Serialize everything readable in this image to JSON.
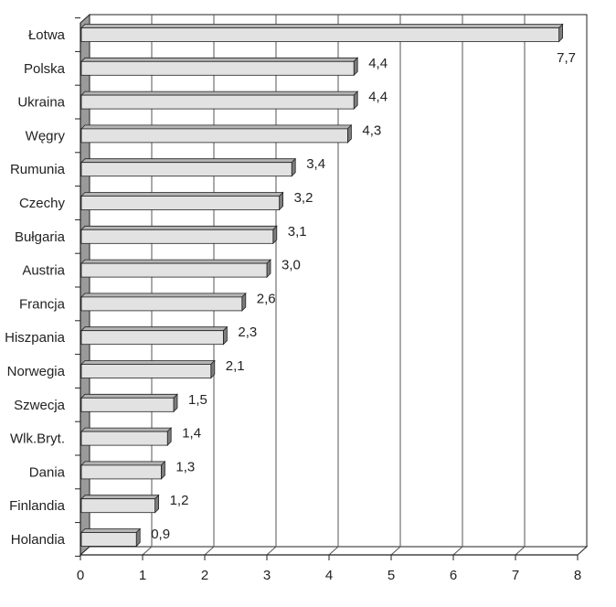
{
  "chart_data": {
    "type": "bar",
    "orientation": "horizontal",
    "categories": [
      "Łotwa",
      "Polska",
      "Ukraina",
      "Węgry",
      "Rumunia",
      "Czechy",
      "Bułgaria",
      "Austria",
      "Francja",
      "Hiszpania",
      "Norwegia",
      "Szwecja",
      "Wlk.Bryt.",
      "Dania",
      "Finlandia",
      "Holandia"
    ],
    "values": [
      7.7,
      4.4,
      4.4,
      4.3,
      3.4,
      3.2,
      3.1,
      3.0,
      2.6,
      2.3,
      2.1,
      1.5,
      1.4,
      1.3,
      1.2,
      0.9
    ],
    "value_labels": [
      "7,7",
      "4,4",
      "4,4",
      "4,3",
      "3,4",
      "3,2",
      "3,1",
      "3,0",
      "2,6",
      "2,3",
      "2,1",
      "1,5",
      "1,4",
      "1,3",
      "1,2",
      "0,9"
    ],
    "xlim": [
      0,
      8
    ],
    "x_ticks": [
      "0",
      "1",
      "2",
      "3",
      "4",
      "5",
      "6",
      "7",
      "8"
    ],
    "title": "",
    "xlabel": "",
    "ylabel": "",
    "grid": "vertical",
    "style": "3d",
    "colors": {
      "bar_face": "#e2e2e2",
      "bar_top": "#b4b4b4",
      "bar_end": "#7d7d7d",
      "wall": "#9a9a9a",
      "grid": "#555555",
      "axis": "#222222"
    }
  }
}
